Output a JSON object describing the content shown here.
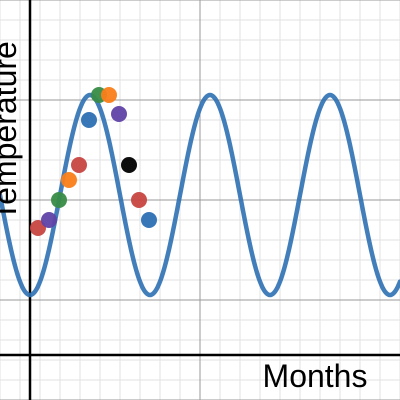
{
  "graph": {
    "xlabel": "Months",
    "ylabel": "Temperature",
    "grid": true
  },
  "chart_data": {
    "type": "scatter",
    "xlabel": "Months",
    "ylabel": "Temperature",
    "xlim": [
      -1.5,
      18.5
    ],
    "ylim": [
      -10,
      10
    ],
    "grid": true,
    "series": [
      {
        "kind": "points",
        "points": [
          {
            "x": 0.4,
            "y": -1.4,
            "color": "#c74440"
          },
          {
            "x": 0.95,
            "y": -1.0,
            "color": "#6042a6"
          },
          {
            "x": 1.45,
            "y": 0.0,
            "color": "#388c46"
          },
          {
            "x": 1.95,
            "y": 1.0,
            "color": "#fa7e19"
          },
          {
            "x": 2.45,
            "y": 1.75,
            "color": "#c74440"
          },
          {
            "x": 2.95,
            "y": 4.0,
            "color": "#2d70b3"
          },
          {
            "x": 3.45,
            "y": 5.25,
            "color": "#388c46"
          },
          {
            "x": 3.95,
            "y": 5.25,
            "color": "#fa7e19"
          },
          {
            "x": 4.45,
            "y": 4.3,
            "color": "#6042a6"
          },
          {
            "x": 4.95,
            "y": 1.75,
            "color": "#000000"
          },
          {
            "x": 5.45,
            "y": 0.0,
            "color": "#c74440"
          },
          {
            "x": 5.95,
            "y": -1.0,
            "color": "#2d70b3"
          }
        ]
      },
      {
        "kind": "curve",
        "color": "#2d70b3",
        "equation": "y = 5*sin((pi/3)*(x - 1.5)) + 0.25"
      }
    ]
  }
}
